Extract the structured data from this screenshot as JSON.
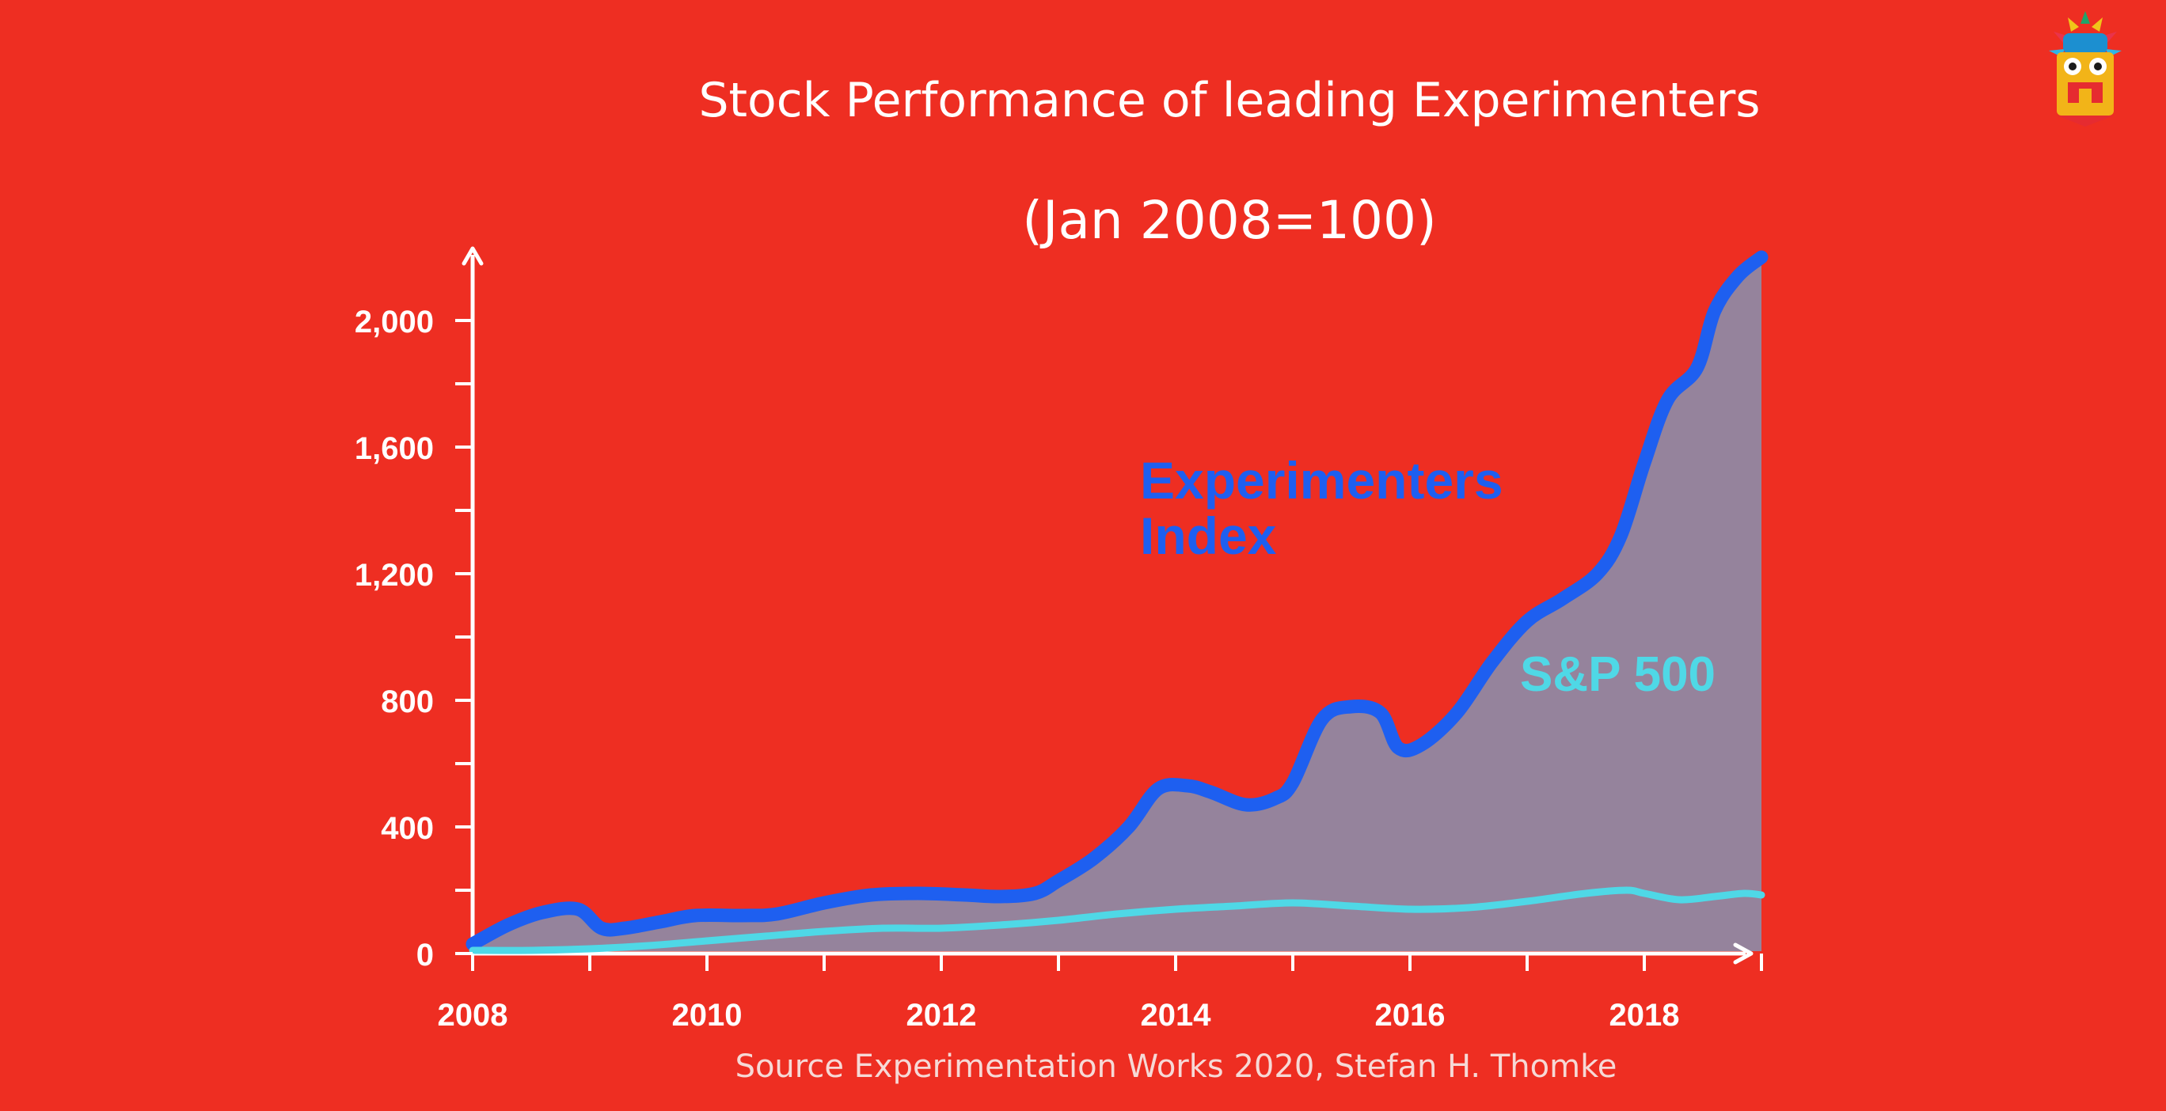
{
  "header": {
    "title": "Stock Performance of leading Experimenters",
    "subtitle": "(Jan 2008=100)"
  },
  "footer": {
    "source": "Source Experimentation Works 2020, Stefan H. Thomke"
  },
  "logo": {
    "icon": "mascot-logo-icon"
  },
  "colors": {
    "background": "#ee2e22",
    "experimenters": "#1e5ff0",
    "sp500": "#4fd8e6",
    "area_fill": "#8e8aa6",
    "axis": "#ffffff"
  },
  "chart_data": {
    "type": "line",
    "title": "Stock Performance of leading Experimenters",
    "subtitle": "(Jan 2008=100)",
    "xlabel": "",
    "ylabel": "",
    "xlim": [
      2008,
      2019
    ],
    "ylim": [
      0,
      2200
    ],
    "x_ticks": [
      2008,
      2010,
      2012,
      2014,
      2016,
      2018
    ],
    "y_ticks": [
      0,
      400,
      800,
      1200,
      1600,
      2000
    ],
    "y_tick_labels": [
      "0",
      "400",
      "800",
      "1,200",
      "1,600",
      "2,000"
    ],
    "x_tick_labels": [
      "2008",
      "2010",
      "2012",
      "2014",
      "2016",
      "2018"
    ],
    "grid": false,
    "legend": "inline labels",
    "series": [
      {
        "name": "Experimenters Index",
        "label_lines": [
          "Experimenters",
          "Index"
        ],
        "color": "#1e5ff0",
        "filled": true,
        "points": [
          [
            2008.0,
            30
          ],
          [
            2008.3,
            90
          ],
          [
            2008.6,
            130
          ],
          [
            2008.9,
            140
          ],
          [
            2009.1,
            80
          ],
          [
            2009.3,
            80
          ],
          [
            2009.6,
            100
          ],
          [
            2009.9,
            120
          ],
          [
            2010.3,
            120
          ],
          [
            2010.6,
            125
          ],
          [
            2011.0,
            160
          ],
          [
            2011.4,
            185
          ],
          [
            2011.8,
            190
          ],
          [
            2012.2,
            185
          ],
          [
            2012.5,
            180
          ],
          [
            2012.8,
            190
          ],
          [
            2013.0,
            230
          ],
          [
            2013.3,
            300
          ],
          [
            2013.6,
            400
          ],
          [
            2013.85,
            520
          ],
          [
            2014.1,
            530
          ],
          [
            2014.3,
            510
          ],
          [
            2014.6,
            470
          ],
          [
            2014.85,
            490
          ],
          [
            2015.0,
            540
          ],
          [
            2015.25,
            740
          ],
          [
            2015.5,
            780
          ],
          [
            2015.75,
            760
          ],
          [
            2015.9,
            650
          ],
          [
            2016.1,
            660
          ],
          [
            2016.4,
            760
          ],
          [
            2016.7,
            920
          ],
          [
            2017.0,
            1050
          ],
          [
            2017.3,
            1120
          ],
          [
            2017.6,
            1200
          ],
          [
            2017.8,
            1320
          ],
          [
            2018.0,
            1550
          ],
          [
            2018.2,
            1750
          ],
          [
            2018.45,
            1850
          ],
          [
            2018.6,
            2030
          ],
          [
            2018.8,
            2140
          ],
          [
            2019.0,
            2200
          ]
        ]
      },
      {
        "name": "S&P 500",
        "label_lines": [
          "S&P 500"
        ],
        "color": "#4fd8e6",
        "filled": false,
        "points": [
          [
            2008.0,
            10
          ],
          [
            2008.5,
            10
          ],
          [
            2009.0,
            15
          ],
          [
            2009.5,
            25
          ],
          [
            2010.0,
            40
          ],
          [
            2010.5,
            55
          ],
          [
            2011.0,
            70
          ],
          [
            2011.5,
            80
          ],
          [
            2012.0,
            80
          ],
          [
            2012.5,
            90
          ],
          [
            2013.0,
            105
          ],
          [
            2013.5,
            125
          ],
          [
            2014.0,
            140
          ],
          [
            2014.5,
            150
          ],
          [
            2015.0,
            160
          ],
          [
            2015.5,
            150
          ],
          [
            2016.0,
            140
          ],
          [
            2016.5,
            145
          ],
          [
            2017.0,
            165
          ],
          [
            2017.5,
            190
          ],
          [
            2017.85,
            200
          ],
          [
            2018.0,
            190
          ],
          [
            2018.3,
            170
          ],
          [
            2018.6,
            180
          ],
          [
            2018.85,
            190
          ],
          [
            2019.0,
            185
          ]
        ]
      }
    ]
  }
}
